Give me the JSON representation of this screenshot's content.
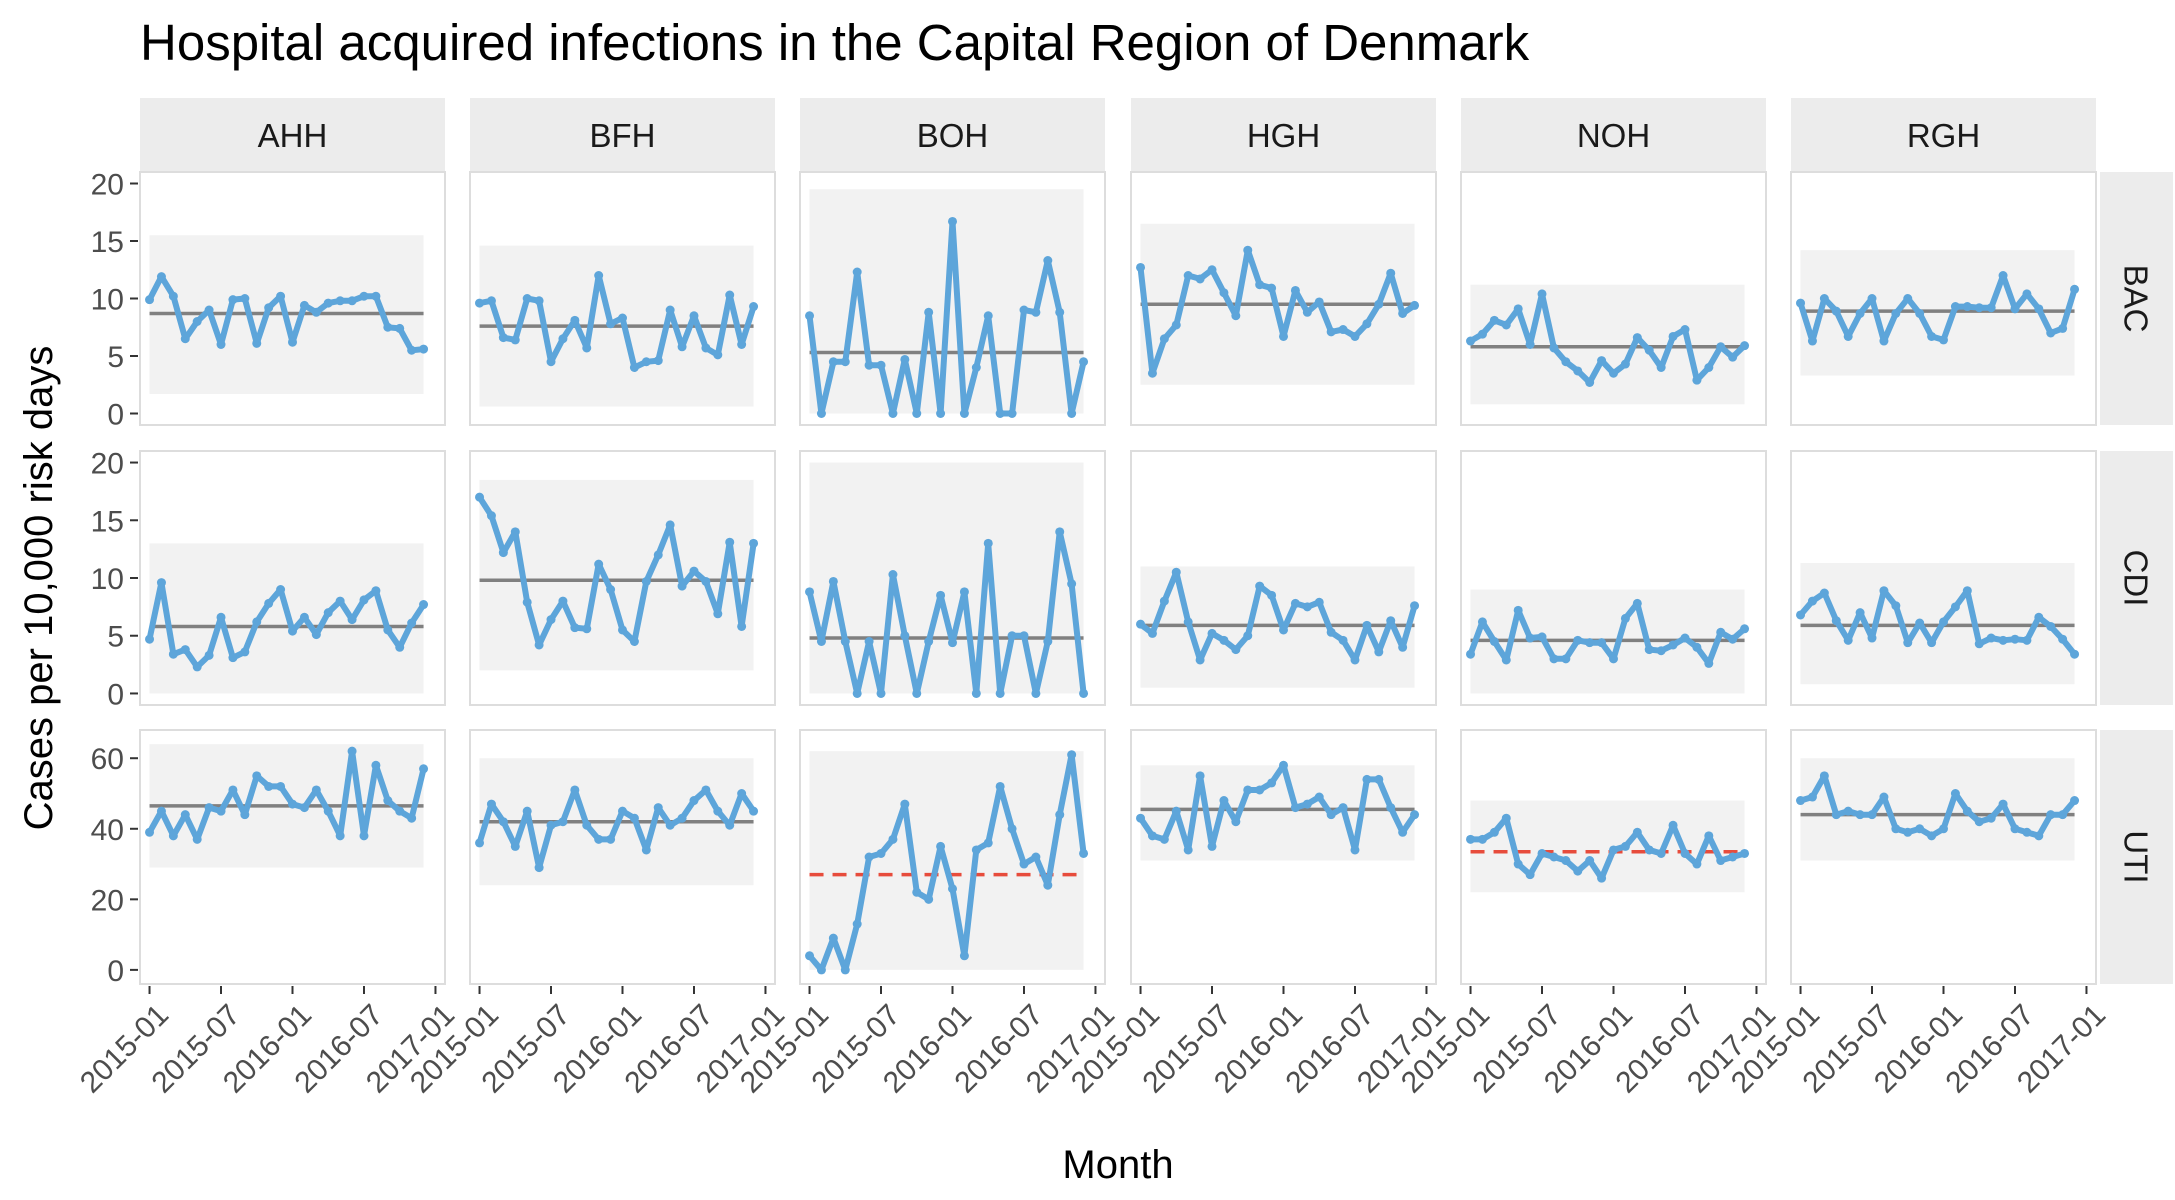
{
  "chart_data": {
    "type": "line",
    "title": "Hospital acquired infections in the Capital Region of Denmark",
    "xlabel": "Month",
    "ylabel": "Cases per 10,000 risk days",
    "x_start": "2015-01",
    "x_end": "2016-12",
    "x_ticks": [
      "2015-01",
      "2015-07",
      "2016-01",
      "2016-07",
      "2017-01"
    ],
    "columns": [
      "AHH",
      "BFH",
      "BOH",
      "HGH",
      "NOH",
      "RGH"
    ],
    "rows": [
      "BAC",
      "CDI",
      "UTI"
    ],
    "row_ylim": {
      "BAC": [
        -1,
        21
      ],
      "CDI": [
        -1,
        21
      ],
      "UTI": [
        -4,
        68
      ]
    },
    "row_yticks": {
      "BAC": [
        0,
        5,
        10,
        15,
        20
      ],
      "CDI": [
        0,
        5,
        10,
        15,
        20
      ],
      "UTI": [
        0,
        20,
        40,
        60
      ]
    },
    "colors": {
      "series": "#5DA5DA",
      "centre": "#808080",
      "shift": "#E74C3C",
      "limits_band": "#F2F2F2",
      "strip": "#ECECEC",
      "panel_border": "#DDDDDD"
    },
    "panels": [
      {
        "row": "BAC",
        "col": "AHH",
        "centre": 8.7,
        "signal": false,
        "band": [
          1.7,
          15.5
        ],
        "values": [
          9.9,
          11.9,
          10.2,
          6.5,
          8.0,
          9.0,
          6.0,
          9.9,
          10.0,
          6.1,
          9.2,
          10.2,
          6.2,
          9.4,
          8.8,
          9.6,
          9.8,
          9.8,
          10.2,
          10.2,
          7.5,
          7.4,
          5.5,
          5.6
        ]
      },
      {
        "row": "BAC",
        "col": "BFH",
        "centre": 7.6,
        "signal": false,
        "band": [
          0.6,
          14.6
        ],
        "values": [
          9.6,
          9.8,
          6.6,
          6.4,
          10.0,
          9.8,
          4.5,
          6.5,
          8.1,
          5.7,
          12.0,
          7.8,
          8.3,
          4.0,
          4.5,
          4.6,
          9.0,
          5.8,
          8.5,
          5.7,
          5.1,
          10.3,
          6.0,
          9.3
        ]
      },
      {
        "row": "BAC",
        "col": "BOH",
        "centre": 5.3,
        "signal": false,
        "band": [
          0.0,
          19.5
        ],
        "values": [
          8.5,
          0,
          4.5,
          4.5,
          12.3,
          4.2,
          4.2,
          0,
          4.7,
          0,
          8.8,
          0,
          16.7,
          0,
          4.0,
          8.5,
          0,
          0,
          9.0,
          8.8,
          13.3,
          8.8,
          0,
          4.5
        ]
      },
      {
        "row": "BAC",
        "col": "HGH",
        "centre": 9.5,
        "signal": false,
        "band": [
          2.5,
          16.5
        ],
        "values": [
          12.7,
          3.5,
          6.5,
          7.7,
          12.0,
          11.7,
          12.5,
          10.5,
          8.5,
          14.2,
          11.2,
          10.9,
          6.7,
          10.7,
          8.8,
          9.7,
          7.1,
          7.3,
          6.7,
          7.8,
          9.5,
          12.2,
          8.7,
          9.4
        ]
      },
      {
        "row": "BAC",
        "col": "NOH",
        "centre": 5.8,
        "signal": false,
        "band": [
          0.8,
          11.2
        ],
        "values": [
          6.3,
          6.9,
          8.1,
          7.7,
          9.1,
          6.0,
          10.4,
          5.7,
          4.5,
          3.7,
          2.7,
          4.6,
          3.5,
          4.3,
          6.6,
          5.5,
          4.0,
          6.7,
          7.3,
          2.9,
          4.0,
          5.8,
          4.9,
          5.9
        ]
      },
      {
        "row": "BAC",
        "col": "RGH",
        "centre": 8.9,
        "signal": false,
        "band": [
          3.3,
          14.2
        ],
        "values": [
          9.6,
          6.3,
          10.0,
          8.9,
          6.7,
          8.7,
          10.0,
          6.3,
          8.7,
          10.0,
          8.7,
          6.7,
          6.4,
          9.3,
          9.3,
          9.2,
          9.2,
          12.0,
          9.1,
          10.4,
          9.1,
          7.0,
          7.4,
          10.8
        ]
      },
      {
        "row": "CDI",
        "col": "AHH",
        "centre": 5.8,
        "signal": false,
        "band": [
          0.0,
          13.0
        ],
        "values": [
          4.7,
          9.6,
          3.4,
          3.8,
          2.3,
          3.3,
          6.6,
          3.1,
          3.6,
          6.2,
          7.8,
          9.0,
          5.4,
          6.6,
          5.1,
          7.0,
          8.0,
          6.4,
          8.1,
          8.9,
          5.5,
          4.0,
          6.1,
          7.7
        ]
      },
      {
        "row": "CDI",
        "col": "BFH",
        "centre": 9.8,
        "signal": false,
        "band": [
          2.0,
          18.5
        ],
        "values": [
          17.0,
          15.4,
          12.2,
          14.0,
          7.9,
          4.2,
          6.4,
          8.0,
          5.7,
          5.6,
          11.2,
          9.0,
          5.5,
          4.5,
          9.7,
          12.0,
          14.6,
          9.3,
          10.6,
          9.7,
          6.9,
          13.1,
          5.8,
          13.0
        ]
      },
      {
        "row": "CDI",
        "col": "BOH",
        "centre": 4.8,
        "signal": false,
        "band": [
          0.0,
          20.0
        ],
        "values": [
          8.8,
          4.5,
          9.7,
          4.5,
          0,
          4.5,
          0,
          10.3,
          5.0,
          0,
          4.5,
          8.5,
          4.4,
          8.8,
          0,
          13.0,
          0,
          5.0,
          5.0,
          0,
          4.5,
          14.0,
          9.5,
          0
        ]
      },
      {
        "row": "CDI",
        "col": "HGH",
        "centre": 5.9,
        "signal": false,
        "band": [
          0.5,
          11.0
        ],
        "values": [
          6.0,
          5.2,
          8.0,
          10.5,
          6.2,
          2.9,
          5.2,
          4.6,
          3.8,
          5.0,
          9.3,
          8.5,
          5.5,
          7.8,
          7.5,
          7.9,
          5.3,
          4.6,
          2.9,
          5.9,
          3.6,
          6.3,
          4.0,
          7.6
        ]
      },
      {
        "row": "CDI",
        "col": "NOH",
        "centre": 4.6,
        "signal": false,
        "band": [
          0.0,
          9.0
        ],
        "values": [
          3.4,
          6.2,
          4.5,
          2.9,
          7.2,
          4.8,
          4.9,
          3.0,
          3.0,
          4.6,
          4.4,
          4.4,
          3.0,
          6.5,
          7.8,
          3.8,
          3.7,
          4.2,
          4.8,
          4.0,
          2.6,
          5.3,
          4.7,
          5.6
        ]
      },
      {
        "row": "CDI",
        "col": "RGH",
        "centre": 5.9,
        "signal": false,
        "band": [
          0.8,
          11.3
        ],
        "values": [
          6.8,
          8.0,
          8.7,
          6.3,
          4.6,
          7.0,
          4.8,
          8.9,
          7.6,
          4.4,
          6.1,
          4.4,
          6.2,
          7.5,
          8.9,
          4.3,
          4.8,
          4.6,
          4.7,
          4.6,
          6.6,
          5.8,
          4.7,
          3.4
        ]
      },
      {
        "row": "UTI",
        "col": "AHH",
        "centre": 46.5,
        "signal": false,
        "band": [
          29.0,
          64.0
        ],
        "values": [
          39,
          45,
          38,
          44,
          37,
          46,
          45,
          51,
          44,
          55,
          52,
          52,
          47,
          46,
          51,
          45,
          38,
          62,
          38,
          58,
          48,
          45,
          43,
          57
        ]
      },
      {
        "row": "UTI",
        "col": "BFH",
        "centre": 42.0,
        "signal": false,
        "band": [
          24.0,
          60.0
        ],
        "values": [
          36,
          47,
          42,
          35,
          45,
          29,
          41,
          42,
          51,
          41,
          37,
          37,
          45,
          43,
          34,
          46,
          41,
          43,
          48,
          51,
          45,
          41,
          50,
          45
        ]
      },
      {
        "row": "UTI",
        "col": "BOH",
        "centre": 27.0,
        "signal": true,
        "band": [
          0.0,
          62.0
        ],
        "values": [
          4,
          0,
          9,
          0,
          13,
          32,
          33,
          37,
          47,
          22,
          20,
          35,
          23,
          4,
          34,
          36,
          52,
          40,
          30,
          32,
          24,
          44,
          61,
          33
        ]
      },
      {
        "row": "UTI",
        "col": "HGH",
        "centre": 45.5,
        "signal": false,
        "band": [
          31.0,
          58.0
        ],
        "values": [
          43,
          38,
          37,
          45,
          34,
          55,
          35,
          48,
          42,
          51,
          51,
          53,
          58,
          46,
          47,
          49,
          44,
          46,
          34,
          54,
          54,
          46,
          39,
          44
        ]
      },
      {
        "row": "UTI",
        "col": "NOH",
        "centre": 33.5,
        "signal": true,
        "band": [
          22.0,
          48.0
        ],
        "values": [
          37,
          37,
          39,
          43,
          30,
          27,
          33,
          32,
          31,
          28,
          31,
          26,
          34,
          35,
          39,
          34,
          33,
          41,
          33,
          30,
          38,
          31,
          32,
          33
        ]
      },
      {
        "row": "UTI",
        "col": "RGH",
        "centre": 44.0,
        "signal": false,
        "band": [
          31.0,
          60.0
        ],
        "values": [
          48,
          49,
          55,
          44,
          45,
          44,
          44,
          49,
          40,
          39,
          40,
          38,
          40,
          50,
          45,
          42,
          43,
          47,
          40,
          39,
          38,
          44,
          44,
          48
        ]
      }
    ]
  }
}
